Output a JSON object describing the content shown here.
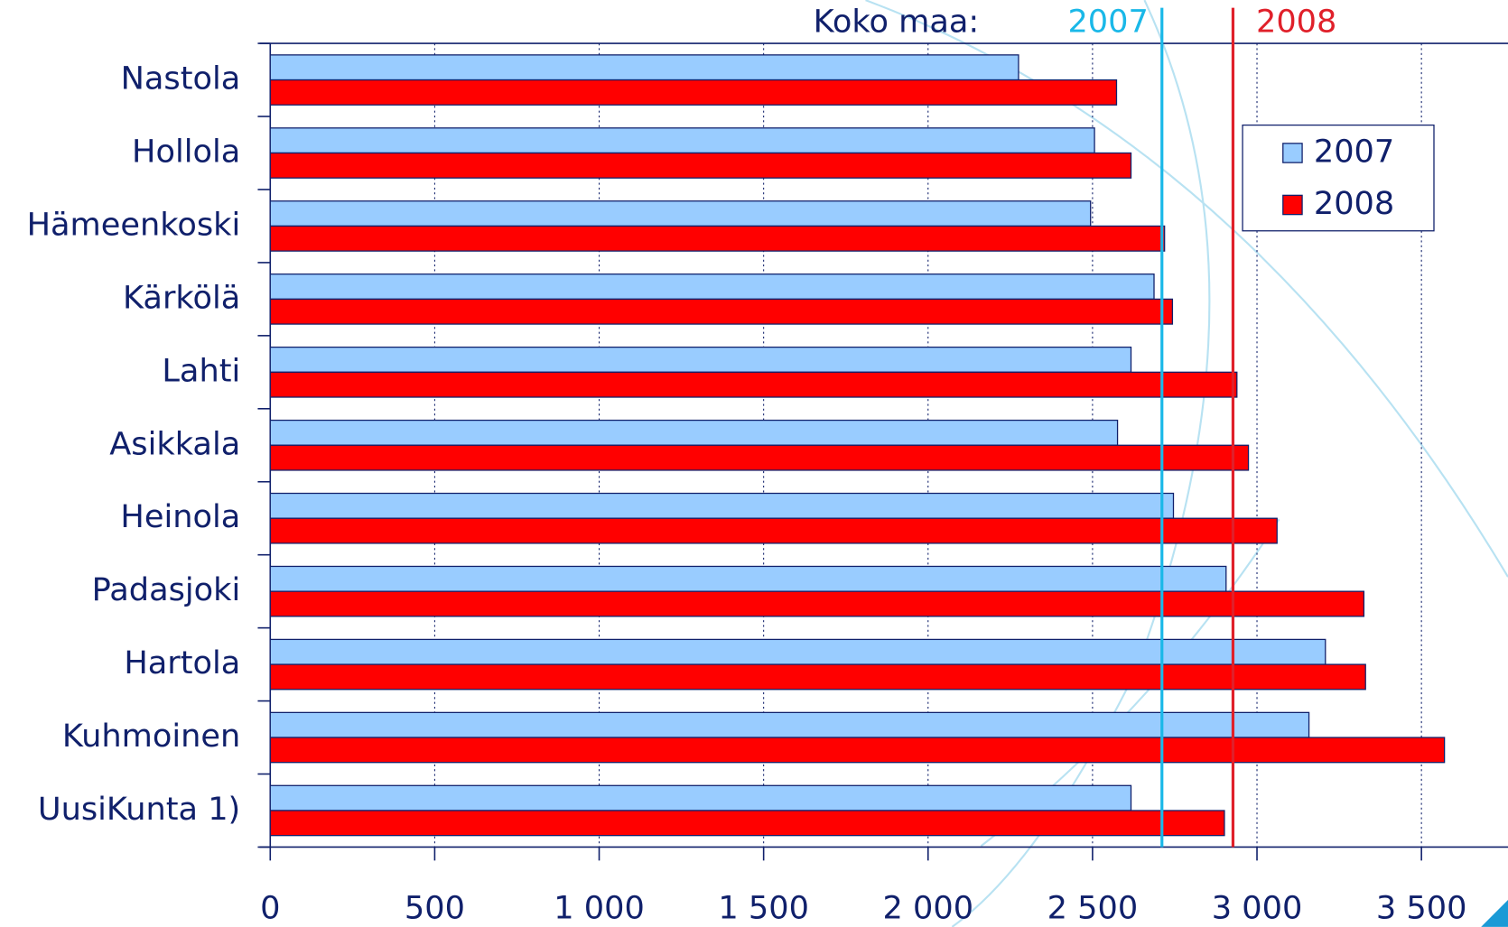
{
  "chart_data": {
    "type": "barh",
    "categories": [
      "Nastola",
      "Hollola",
      "Hämeenkoski",
      "Kärkölä",
      "Lahti",
      "Asikkala",
      "Heinola",
      "Padasjoki",
      "Hartola",
      "Kuhmoinen",
      "UusiKunta 1)"
    ],
    "series": [
      {
        "name": "2007",
        "color": "#99ccff",
        "values": [
          2275,
          2506,
          2494,
          2687,
          2617,
          2576,
          2746,
          2906,
          3208,
          3158,
          2617
        ]
      },
      {
        "name": "2008",
        "color": "#ff0000",
        "values": [
          2573,
          2617,
          2719,
          2743,
          2939,
          2974,
          3061,
          3325,
          3330,
          3570,
          2901
        ]
      }
    ],
    "reference_title": "Koko maa:",
    "reference_lines": [
      {
        "label": "2007",
        "value": 2711,
        "color": "#1ab8e8"
      },
      {
        "label": "2008",
        "value": 2927,
        "color": "#e0202a"
      }
    ],
    "xlim": [
      0,
      3750
    ],
    "xticks": [
      0,
      500,
      {
        "value": 1000,
        "label": "1 000"
      },
      {
        "value": 1500,
        "label": "1 500"
      },
      {
        "value": 2000,
        "label": "2 000"
      },
      {
        "value": 2500,
        "label": "2 500"
      },
      {
        "value": 3000,
        "label": "3 000"
      },
      {
        "value": 3500,
        "label": "3 500"
      }
    ],
    "grid": true,
    "legend": "right"
  }
}
